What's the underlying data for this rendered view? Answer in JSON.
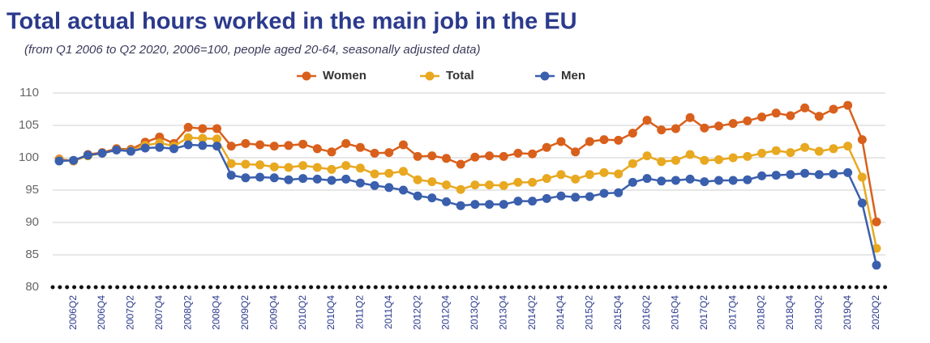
{
  "chart_data": {
    "type": "line",
    "title": "Total actual hours worked in the main job in the EU",
    "subtitle": "(from Q1 2006 to Q2 2020, 2006=100, people aged 20-64, seasonally adjusted data)",
    "categories": [
      null,
      "2006Q2",
      null,
      "2006Q4",
      null,
      "2007Q2",
      null,
      "2007Q4",
      null,
      "2008Q2",
      null,
      "2008Q4",
      null,
      "2009Q2",
      null,
      "2009Q4",
      null,
      "2010Q2",
      null,
      "2010Q4",
      null,
      "2011Q2",
      null,
      "2011Q4",
      null,
      "2012Q2",
      null,
      "2012Q4",
      null,
      "2013Q2",
      null,
      "2013Q4",
      null,
      "2014Q2",
      null,
      "2014Q4",
      null,
      "2015Q2",
      null,
      "2015Q4",
      null,
      "2016Q2",
      null,
      "2016Q4",
      null,
      "2017Q2",
      null,
      "2017Q4",
      null,
      "2018Q2",
      null,
      "2018Q4",
      null,
      "2019Q2",
      null,
      "2019Q4",
      null,
      "2020Q2"
    ],
    "series": [
      {
        "name": "Women",
        "color": "#d9601c",
        "values": [
          99.8,
          99.5,
          100.5,
          100.8,
          101.4,
          101.3,
          102.4,
          103.2,
          102.2,
          104.7,
          104.5,
          104.5,
          101.8,
          102.2,
          102.0,
          101.8,
          101.9,
          102.1,
          101.4,
          100.9,
          102.2,
          101.6,
          100.7,
          100.8,
          102.0,
          100.2,
          100.3,
          99.9,
          99.0,
          100.1,
          100.3,
          100.2,
          100.7,
          100.6,
          101.6,
          102.5,
          100.9,
          102.5,
          102.8,
          102.7,
          103.8,
          105.8,
          104.3,
          104.5,
          106.2,
          104.6,
          104.9,
          105.3,
          105.7,
          106.3,
          106.9,
          106.5,
          107.7,
          106.4,
          107.5,
          108.1,
          102.8,
          90.1
        ]
      },
      {
        "name": "Total",
        "color": "#e8a820",
        "values": [
          99.7,
          99.5,
          100.3,
          100.7,
          101.2,
          101.1,
          101.9,
          102.3,
          101.8,
          103.1,
          103.0,
          102.9,
          99.1,
          99.0,
          98.9,
          98.6,
          98.5,
          98.8,
          98.5,
          98.2,
          98.8,
          98.4,
          97.5,
          97.6,
          97.9,
          96.6,
          96.3,
          95.8,
          95.1,
          95.8,
          95.8,
          95.7,
          96.2,
          96.2,
          96.8,
          97.4,
          96.7,
          97.4,
          97.7,
          97.5,
          99.1,
          100.3,
          99.4,
          99.6,
          100.5,
          99.6,
          99.7,
          100.0,
          100.2,
          100.7,
          101.1,
          100.8,
          101.6,
          101.0,
          101.4,
          101.8,
          97.0,
          86.0
        ]
      },
      {
        "name": "Men",
        "color": "#3a5fad",
        "values": [
          99.5,
          99.6,
          100.4,
          100.7,
          101.2,
          101.0,
          101.5,
          101.6,
          101.4,
          102.0,
          101.9,
          101.8,
          97.3,
          96.9,
          97.0,
          96.9,
          96.6,
          96.8,
          96.7,
          96.5,
          96.7,
          96.1,
          95.7,
          95.4,
          95.0,
          94.1,
          93.8,
          93.2,
          92.6,
          92.8,
          92.8,
          92.8,
          93.3,
          93.3,
          93.7,
          94.1,
          93.9,
          94.0,
          94.5,
          94.6,
          96.2,
          96.8,
          96.4,
          96.5,
          96.7,
          96.3,
          96.5,
          96.5,
          96.6,
          97.2,
          97.3,
          97.4,
          97.6,
          97.4,
          97.5,
          97.7,
          93.0,
          83.4
        ]
      }
    ],
    "ylim": [
      80,
      110
    ],
    "yticks": [
      80,
      85,
      90,
      95,
      100,
      105,
      110
    ],
    "grid": true,
    "legend": "top"
  }
}
